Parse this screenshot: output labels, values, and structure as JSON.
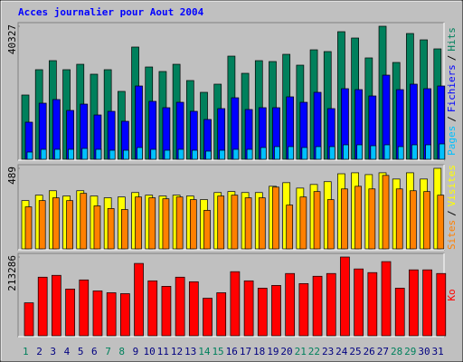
{
  "title": "Acces journalier pour Aout 2004",
  "legend_separator": "/",
  "chart_data": [
    {
      "type": "bar",
      "ylim": [
        0,
        40327
      ],
      "yticks": [
        40327
      ],
      "series": [
        {
          "name": "Hits",
          "color": "#00805c",
          "values": [
            19480,
            27160,
            29900,
            27160,
            28800,
            25790,
            27160,
            20580,
            34020,
            27980,
            26610,
            28800,
            23870,
            20300,
            22770,
            31270,
            26060,
            29900,
            29630,
            31820,
            28530,
            33190,
            32650,
            38680,
            36760,
            30730,
            40327,
            29350,
            38130,
            36210,
            33470
          ]
        },
        {
          "name": "Fichiers",
          "color": "#0000ff",
          "values": [
            11250,
            17010,
            18110,
            14810,
            16730,
            13440,
            14540,
            11520,
            22220,
            17560,
            15640,
            17280,
            14540,
            12070,
            15360,
            18650,
            15090,
            15640,
            15640,
            18930,
            17280,
            20300,
            15360,
            21400,
            21120,
            19200,
            25510,
            21120,
            22770,
            21400,
            22220
          ]
        },
        {
          "name": "Pages",
          "color": "#00c0ff",
          "values": [
            2190,
            3020,
            3020,
            3020,
            3290,
            3020,
            2740,
            2740,
            3570,
            3020,
            2740,
            3020,
            2740,
            2470,
            2740,
            3020,
            3020,
            3570,
            3840,
            3840,
            3570,
            3840,
            3840,
            4390,
            4390,
            4110,
            4390,
            3840,
            4390,
            4390,
            4660
          ]
        }
      ]
    },
    {
      "type": "bar",
      "ylim": [
        0,
        489
      ],
      "yticks": [
        489
      ],
      "series": [
        {
          "name": "Visites",
          "color": "#ffff00",
          "values": [
            293,
            326,
            353,
            321,
            353,
            321,
            310,
            315,
            342,
            326,
            321,
            326,
            321,
            299,
            342,
            348,
            342,
            342,
            380,
            402,
            369,
            391,
            408,
            456,
            462,
            451,
            462,
            424,
            462,
            424,
            489
          ]
        },
        {
          "name": "Sites",
          "color": "#ff8000",
          "values": [
            255,
            293,
            310,
            293,
            337,
            261,
            245,
            239,
            315,
            310,
            304,
            315,
            299,
            234,
            321,
            326,
            310,
            310,
            375,
            266,
            315,
            348,
            299,
            364,
            380,
            364,
            446,
            364,
            353,
            348,
            326
          ]
        }
      ]
    },
    {
      "type": "bar",
      "ylim": [
        0,
        213286
      ],
      "yticks": [
        213286
      ],
      "categories": [
        "1",
        "2",
        "3",
        "4",
        "5",
        "6",
        "7",
        "8",
        "9",
        "10",
        "11",
        "12",
        "13",
        "14",
        "15",
        "16",
        "17",
        "18",
        "19",
        "20",
        "21",
        "22",
        "23",
        "24",
        "25",
        "26",
        "27",
        "28",
        "29",
        "30",
        "31"
      ],
      "category_colors": [
        "#00805c",
        "#000080",
        "#000080",
        "#000080",
        "#000080",
        "#000080",
        "#00805c",
        "#00805c",
        "#000080",
        "#000080",
        "#000080",
        "#000080",
        "#000080",
        "#00805c",
        "#00805c",
        "#000080",
        "#000080",
        "#000080",
        "#000080",
        "#000080",
        "#00805c",
        "#00805c",
        "#000080",
        "#000080",
        "#000080",
        "#000080",
        "#000080",
        "#00805c",
        "#00805c",
        "#000080",
        "#000080"
      ],
      "series": [
        {
          "name": "Ko",
          "color": "#ff0000",
          "values": [
            89280,
            158720,
            163680,
            126480,
            151280,
            121520,
            116560,
            114080,
            195920,
            148800,
            133920,
            158720,
            146320,
            101680,
            116560,
            173600,
            148800,
            128960,
            136400,
            168640,
            141360,
            161200,
            168640,
            213286,
            181040,
            171120,
            200880,
            128960,
            178560,
            178560,
            168640
          ]
        }
      ]
    }
  ]
}
